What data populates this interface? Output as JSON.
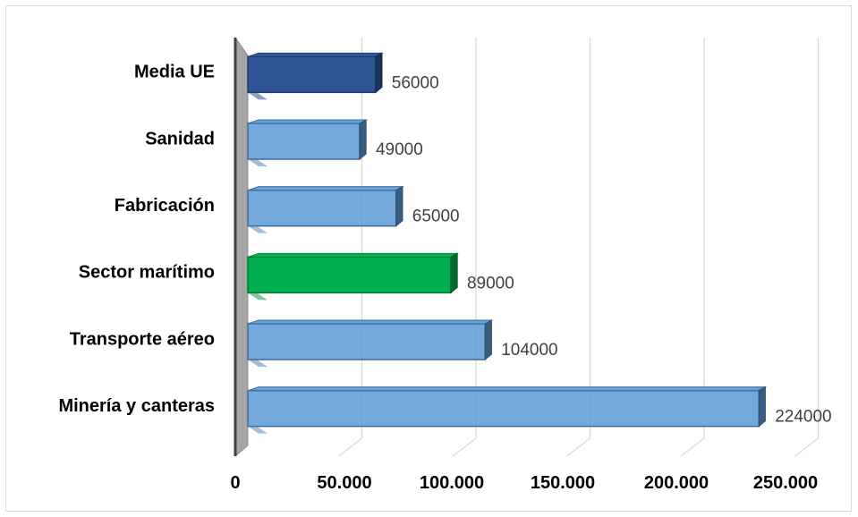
{
  "chart_data": {
    "type": "bar",
    "orientation": "horizontal",
    "three_d": true,
    "title": "",
    "xlabel": "",
    "ylabel": "",
    "categories": [
      "Media UE",
      "Sanidad",
      "Fabricación",
      "Sector marítimo",
      "Transporte aéreo",
      "Minería y canteras"
    ],
    "values": [
      56000,
      49000,
      65000,
      89000,
      104000,
      224000
    ],
    "data_labels": [
      "56000",
      "49000",
      "65000",
      "89000",
      "104000",
      "224000"
    ],
    "bar_colors": [
      "#2f5597",
      "#5b9bd5",
      "#5b9bd5",
      "#00b050",
      "#5b9bd5",
      "#5b9bd5"
    ],
    "x_ticks": [
      0,
      50000,
      100000,
      150000,
      200000,
      250000
    ],
    "x_tick_labels": [
      "0",
      "50.000",
      "100.000",
      "150.000",
      "200.000",
      "250.000"
    ],
    "xlim": [
      0,
      250000
    ],
    "grid": true,
    "legend": "none"
  }
}
